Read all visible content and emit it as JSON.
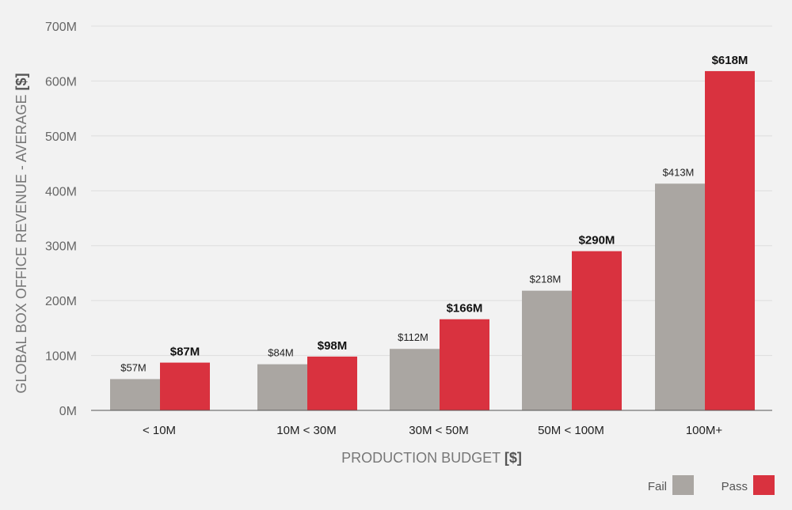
{
  "chart_data": {
    "type": "bar",
    "categories": [
      "< 10M",
      "10M < 30M",
      "30M < 50M",
      "50M < 100M",
      "100M+"
    ],
    "series": [
      {
        "name": "Fail",
        "values": [
          57,
          84,
          112,
          218,
          413
        ],
        "labels": [
          "$57M",
          "$84M",
          "$112M",
          "$218M",
          "$413M"
        ],
        "color": "#aaa6a2"
      },
      {
        "name": "Pass",
        "values": [
          87,
          98,
          166,
          290,
          618
        ],
        "labels": [
          "$87M",
          "$98M",
          "$166M",
          "$290M",
          "$618M"
        ],
        "color": "#d9323f"
      }
    ],
    "ylim": [
      0,
      700
    ],
    "yticks": [
      "0M",
      "100M",
      "200M",
      "300M",
      "400M",
      "500M",
      "600M",
      "700M"
    ],
    "ylabel": {
      "text": "GLOBAL BOX OFFICE REVENUE - AVERAGE",
      "unit": "[$]"
    },
    "xlabel": {
      "text": "PRODUCTION BUDGET",
      "unit": "[$]"
    },
    "grid": true,
    "legend": "bottom-right"
  }
}
